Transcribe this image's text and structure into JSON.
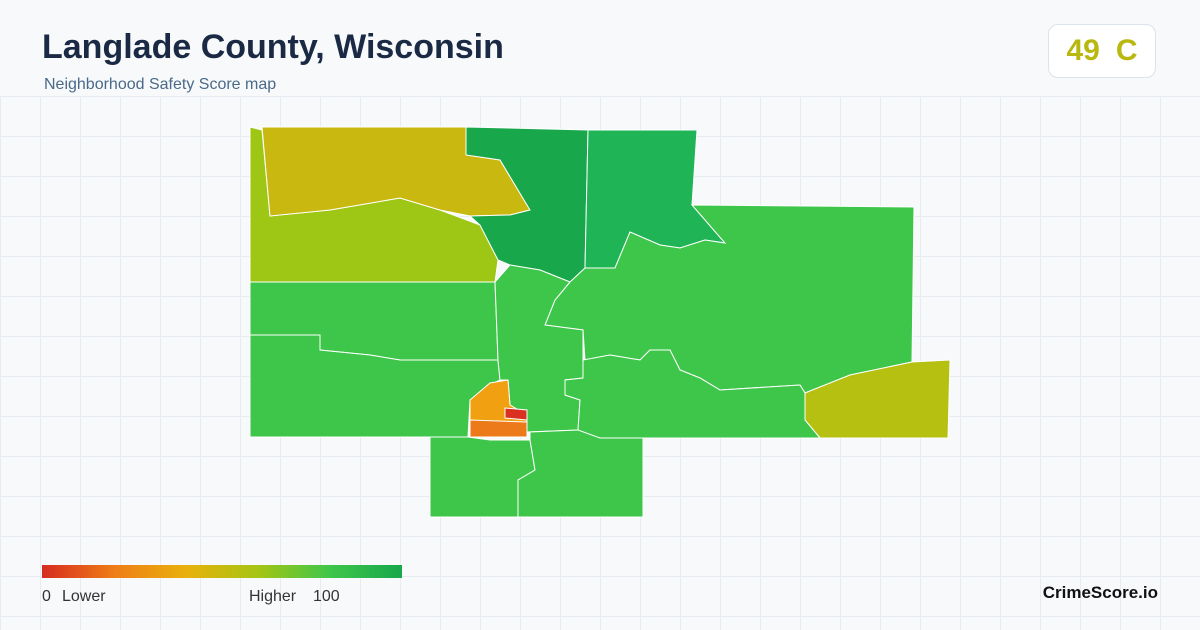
{
  "header": {
    "title": "Langlade County, Wisconsin",
    "subtitle": "Neighborhood Safety Score map"
  },
  "badge": {
    "score": 49,
    "grade": "C"
  },
  "legend": {
    "min": 0,
    "min_label": "Lower",
    "max_label": "Higher",
    "max": 100
  },
  "brand": "CrimeScore.io"
}
